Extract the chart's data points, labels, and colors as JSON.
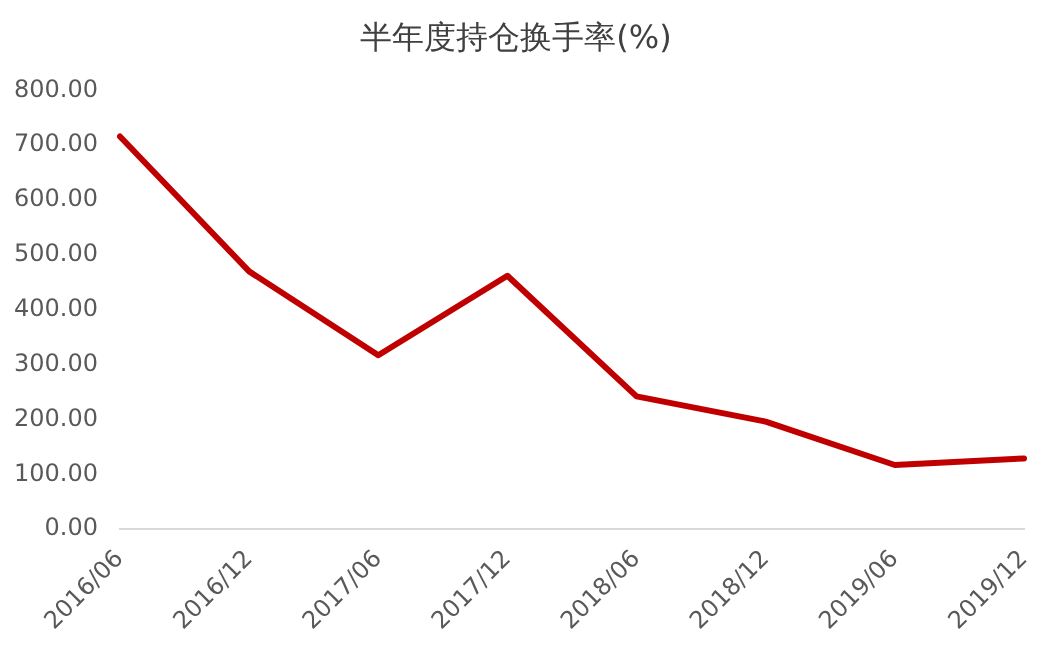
{
  "chart_data": {
    "type": "line",
    "title": "半年度持仓换手率(%)",
    "categories": [
      "2016/06",
      "2016/12",
      "2017/06",
      "2017/12",
      "2018/06",
      "2018/12",
      "2019/06",
      "2019/12"
    ],
    "series": [
      {
        "color": "#c00000",
        "values": [
          716,
          470,
          317,
          462,
          242,
          196,
          117,
          129
        ]
      }
    ],
    "ylim": [
      0,
      800
    ],
    "yticks": [
      {
        "value": 0,
        "label": "0.00"
      },
      {
        "value": 100,
        "label": "100.00"
      },
      {
        "value": 200,
        "label": "200.00"
      },
      {
        "value": 300,
        "label": "300.00"
      },
      {
        "value": 400,
        "label": "400.00"
      },
      {
        "value": 500,
        "label": "500.00"
      },
      {
        "value": 600,
        "label": "600.00"
      },
      {
        "value": 700,
        "label": "700.00"
      },
      {
        "value": 800,
        "label": "800.00"
      }
    ],
    "grid": false,
    "legend": false,
    "marker": "none",
    "line_style": "solid"
  }
}
